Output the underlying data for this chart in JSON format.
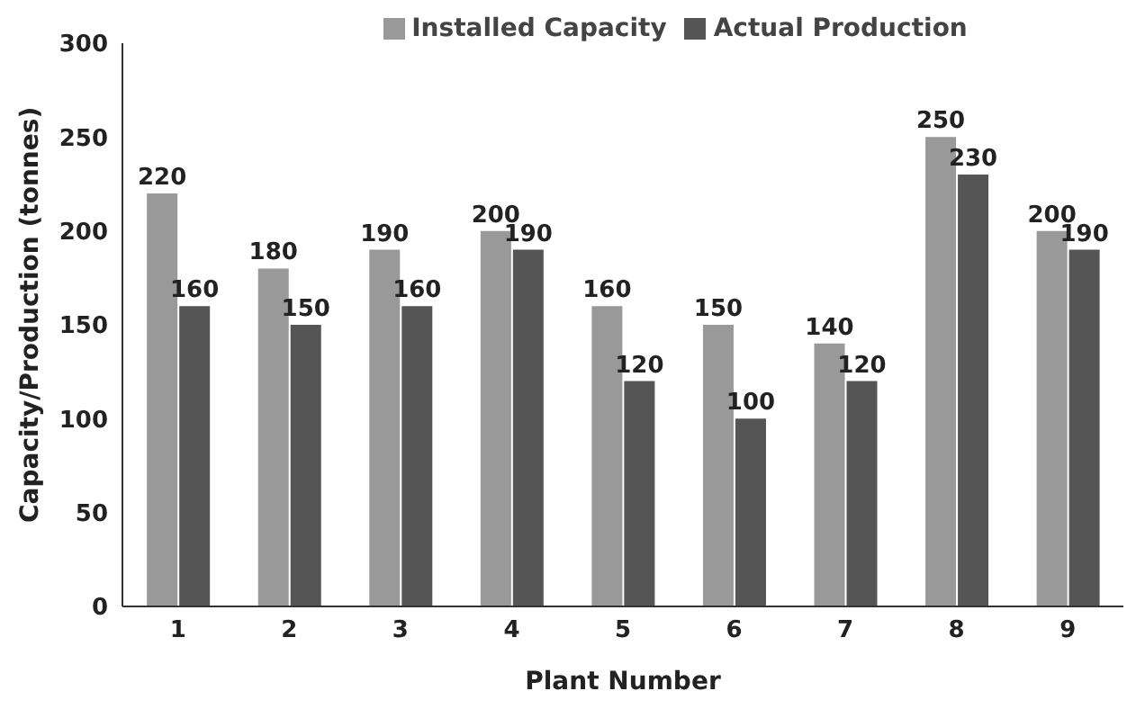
{
  "chart_data": {
    "type": "bar",
    "xlabel": "Plant Number",
    "ylabel": "Capacity/Production (tonnes)",
    "categories": [
      "1",
      "2",
      "3",
      "4",
      "5",
      "6",
      "7",
      "8",
      "9"
    ],
    "series": [
      {
        "name": "Installed Capacity",
        "color": "#999999",
        "values": [
          220,
          180,
          190,
          200,
          160,
          150,
          140,
          250,
          200
        ]
      },
      {
        "name": "Actual Production",
        "color": "#555555",
        "values": [
          160,
          150,
          160,
          190,
          120,
          100,
          120,
          230,
          190
        ]
      }
    ],
    "ylim": [
      0,
      300
    ],
    "yticks": [
      0,
      50,
      100,
      150,
      200,
      250,
      300
    ],
    "data_labels": true,
    "legend": "top",
    "grid": false
  }
}
